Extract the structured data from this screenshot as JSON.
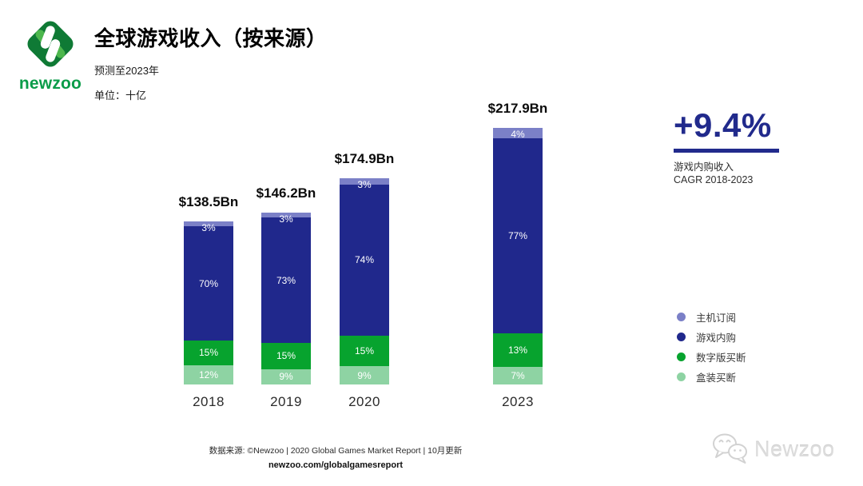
{
  "header": {
    "logo_text": "newzoo",
    "title": "全球游戏收入（按来源）",
    "subtitle": "预测至2023年",
    "unit": "单位：十亿"
  },
  "colors": {
    "accent_blue": "#212a8c",
    "logo_dark_green": "#0f7a35",
    "logo_light_green": "#4db74d",
    "logo_text_green": "#0a9c49",
    "watermark_gray": "#dcdcdc"
  },
  "icons": {
    "logo": "newzoo-diamond-logo",
    "watermark": "wechat-chat-bubbles-icon"
  },
  "chart_data": {
    "type": "bar",
    "stacked": true,
    "grid": false,
    "legend_position": "right",
    "categories": [
      "2018",
      "2019",
      "2020",
      "2023"
    ],
    "totals": [
      "$138.5Bn",
      "$146.2Bn",
      "$174.9Bn",
      "$217.9Bn"
    ],
    "total_values_bn": [
      138.5,
      146.2,
      174.9,
      217.9
    ],
    "series": [
      {
        "name": "主机订阅",
        "key": "console-subscription",
        "color": "#7b80c7",
        "pct": [
          3,
          3,
          3,
          4
        ],
        "labels": [
          "3%",
          "3%",
          "3%",
          "4%"
        ]
      },
      {
        "name": "游戏内购",
        "key": "in-game-purchases",
        "color": "#20288c",
        "pct": [
          70,
          73,
          74,
          77
        ],
        "labels": [
          "70%",
          "73%",
          "74%",
          "77%"
        ]
      },
      {
        "name": "数字版买断",
        "key": "digital-full-game",
        "color": "#07a32e",
        "pct": [
          15,
          15,
          15,
          13
        ],
        "labels": [
          "15%",
          "15%",
          "15%",
          "13%"
        ]
      },
      {
        "name": "盒装买断",
        "key": "boxed-full-game",
        "color": "#8ed3a3",
        "pct": [
          12,
          9,
          9,
          7
        ],
        "labels": [
          "12%",
          "9%",
          "9%",
          "7%"
        ]
      }
    ]
  },
  "stat": {
    "value": "+9.4%",
    "line1": "游戏内购收入",
    "line2": "CAGR 2018-2023"
  },
  "footer": {
    "source": "数据来源: ©Newzoo | 2020 Global Games Market Report | 10月更新",
    "url": "newzoo.com/globalgamesreport"
  },
  "watermark": {
    "text": "Newzoo"
  }
}
